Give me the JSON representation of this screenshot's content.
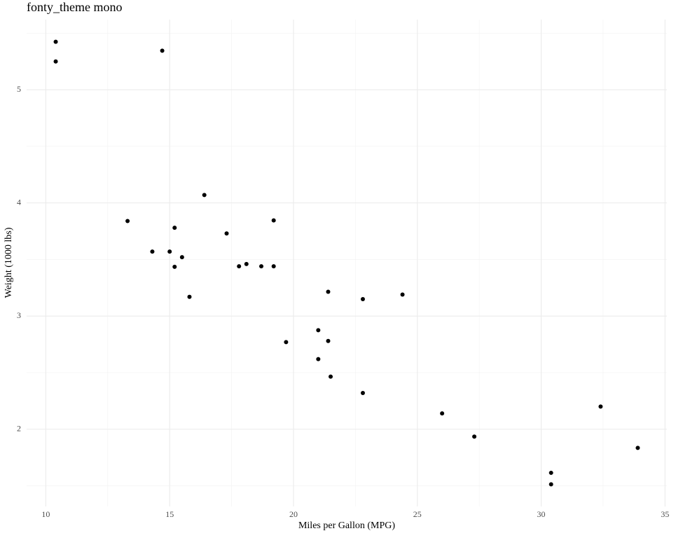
{
  "chart_data": {
    "type": "scatter",
    "title": "fonty_theme mono",
    "x_label": "Miles per Gallon (MPG)",
    "y_label": "Weight (1000 lbs)",
    "x": [
      21.0,
      21.0,
      22.8,
      21.4,
      18.7,
      18.1,
      14.3,
      24.4,
      22.8,
      19.2,
      17.8,
      16.4,
      17.3,
      15.2,
      10.4,
      10.4,
      14.7,
      32.4,
      30.4,
      33.9,
      21.5,
      15.5,
      15.2,
      13.3,
      19.2,
      27.3,
      26.0,
      30.4,
      15.8,
      19.7,
      15.0,
      21.4
    ],
    "y": [
      2.62,
      2.875,
      2.32,
      3.215,
      3.44,
      3.46,
      3.57,
      3.19,
      3.15,
      3.44,
      3.44,
      4.07,
      3.73,
      3.78,
      5.25,
      5.424,
      5.345,
      2.2,
      1.615,
      1.835,
      2.465,
      3.52,
      3.435,
      3.84,
      3.845,
      1.935,
      2.14,
      1.513,
      3.17,
      2.77,
      3.57,
      2.78
    ],
    "color": "#000000",
    "xlim": [
      9.225,
      35.075
    ],
    "ylim": [
      1.3175,
      5.6195
    ],
    "xticks": [
      10,
      15,
      20,
      25,
      30,
      35
    ],
    "yticks": [
      2,
      3,
      4,
      5
    ],
    "x_minor": [
      12.5,
      17.5,
      22.5,
      27.5,
      32.5
    ],
    "y_minor": [
      1.5,
      2.5,
      3.5,
      4.5,
      5.5
    ],
    "grid": true
  }
}
